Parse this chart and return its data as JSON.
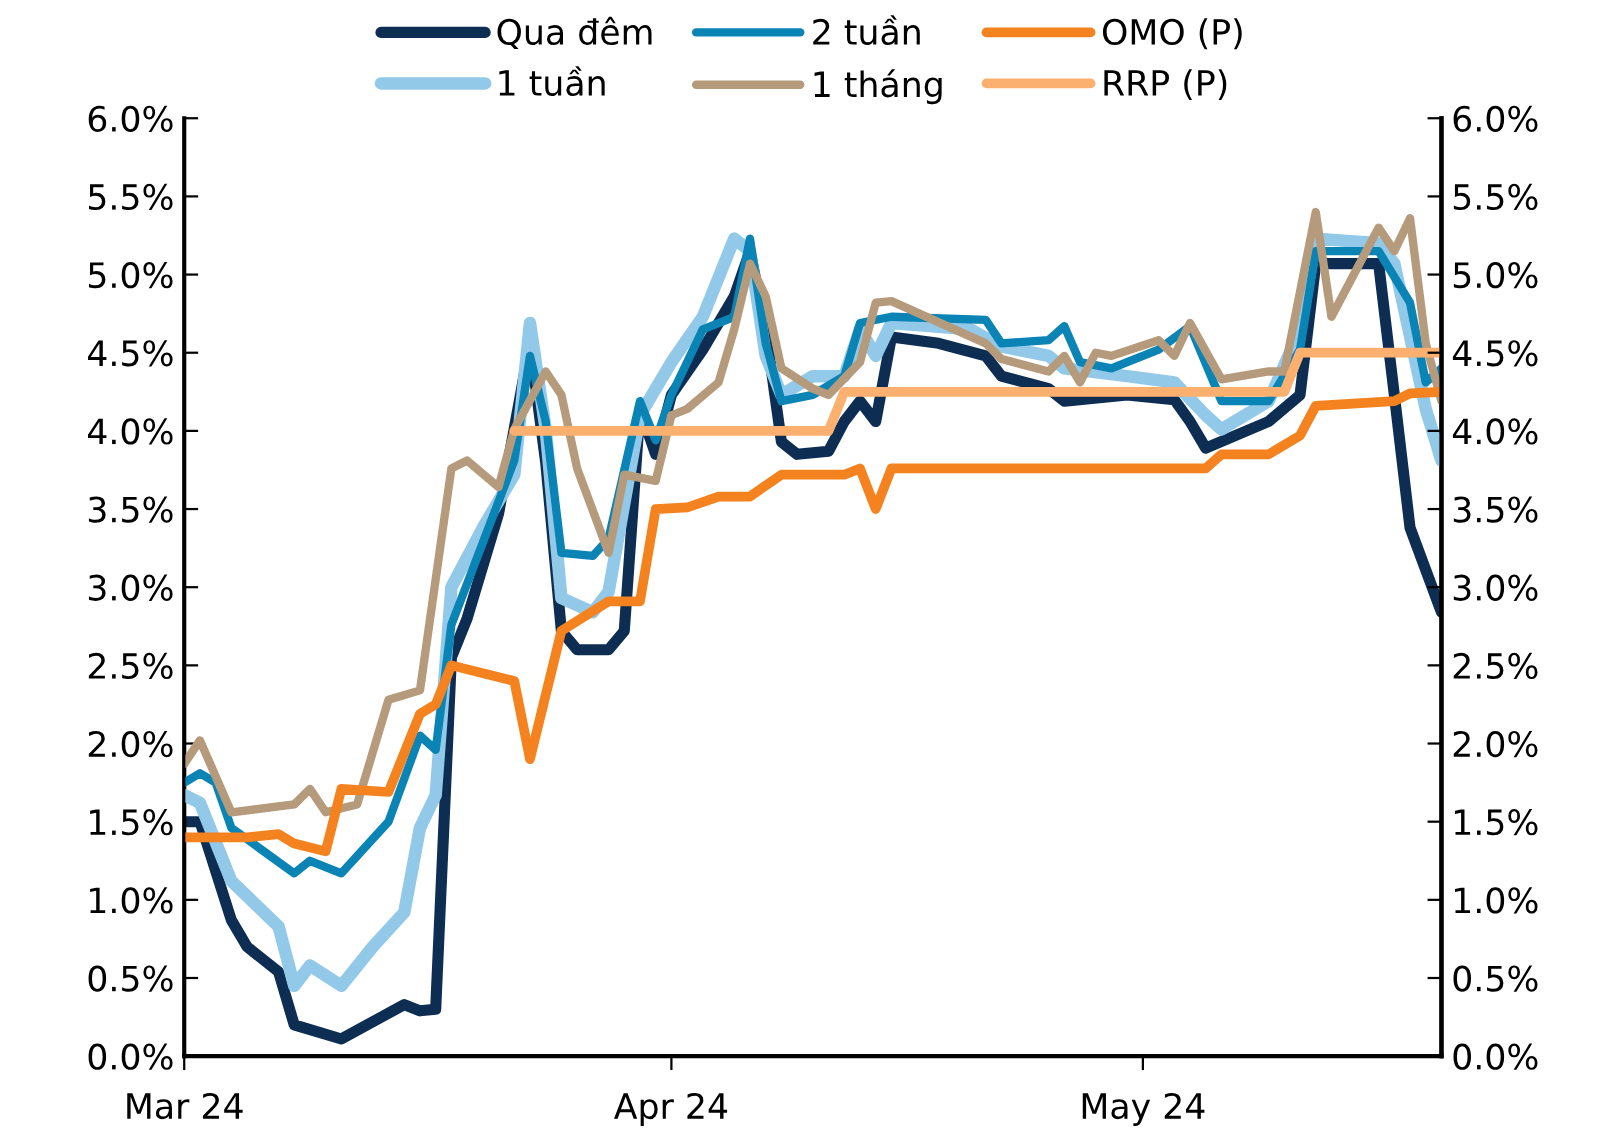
{
  "chart_data": {
    "type": "line",
    "legend": "top",
    "grid": false,
    "line_style": "solid",
    "marker": "none",
    "xlim": [
      "2024-03-01",
      "2024-05-20"
    ],
    "xticks": [
      {
        "value": "2024-03-01",
        "label": "Mar 24"
      },
      {
        "value": "2024-04-01",
        "label": "Apr 24"
      },
      {
        "value": "2024-05-01",
        "label": "May 24"
      }
    ],
    "ylim": [
      0,
      6
    ],
    "yticks": [
      {
        "value": 0,
        "label": "0.0%"
      },
      {
        "value": 0.5,
        "label": "0.5%"
      },
      {
        "value": 1,
        "label": "1.0%"
      },
      {
        "value": 1.5,
        "label": "1.5%"
      },
      {
        "value": 2,
        "label": "2.0%"
      },
      {
        "value": 2.5,
        "label": "2.5%"
      },
      {
        "value": 3,
        "label": "3.0%"
      },
      {
        "value": 3.5,
        "label": "3.5%"
      },
      {
        "value": 4,
        "label": "4.0%"
      },
      {
        "value": 4.5,
        "label": "4.5%"
      },
      {
        "value": 5,
        "label": "5.0%"
      },
      {
        "value": 5.5,
        "label": "5.5%"
      },
      {
        "value": 6,
        "label": "6.0%"
      }
    ],
    "y2lim": [
      0,
      6
    ],
    "y2ticks": [
      {
        "value": 0,
        "label": "0.0%"
      },
      {
        "value": 0.5,
        "label": "0.5%"
      },
      {
        "value": 1,
        "label": "1.0%"
      },
      {
        "value": 1.5,
        "label": "1.5%"
      },
      {
        "value": 2,
        "label": "2.0%"
      },
      {
        "value": 2.5,
        "label": "2.5%"
      },
      {
        "value": 3,
        "label": "3.0%"
      },
      {
        "value": 3.5,
        "label": "3.5%"
      },
      {
        "value": 4,
        "label": "4.0%"
      },
      {
        "value": 4.5,
        "label": "4.5%"
      },
      {
        "value": 5,
        "label": "5.0%"
      },
      {
        "value": 5.5,
        "label": "5.5%"
      },
      {
        "value": 6,
        "label": "6.0%"
      }
    ],
    "series": [
      {
        "name": "Qua đêm",
        "color": "#0d2d52",
        "x": [
          "2024-03-01",
          "2024-03-02",
          "2024-03-04",
          "2024-03-05",
          "2024-03-07",
          "2024-03-08",
          "2024-03-11",
          "2024-03-15",
          "2024-03-16",
          "2024-03-17",
          "2024-03-18",
          "2024-03-19",
          "2024-03-21",
          "2024-03-23",
          "2024-03-24",
          "2024-03-25",
          "2024-03-26",
          "2024-03-28",
          "2024-03-29",
          "2024-03-30",
          "2024-03-31",
          "2024-04-01",
          "2024-04-03",
          "2024-04-05",
          "2024-04-06",
          "2024-04-07",
          "2024-04-08",
          "2024-04-09",
          "2024-04-11",
          "2024-04-12",
          "2024-04-13",
          "2024-04-14",
          "2024-04-15",
          "2024-04-18",
          "2024-04-21",
          "2024-04-22",
          "2024-04-25",
          "2024-04-26",
          "2024-04-30",
          "2024-05-03",
          "2024-05-04",
          "2024-05-05",
          "2024-05-09",
          "2024-05-11",
          "2024-05-12",
          "2024-05-16",
          "2024-05-17",
          "2024-05-18",
          "2024-05-20"
        ],
        "values": [
          1.5,
          1.5,
          0.87,
          0.7,
          0.54,
          0.2,
          0.11,
          0.33,
          0.29,
          0.3,
          2.55,
          2.8,
          3.47,
          4.56,
          3.8,
          2.72,
          2.6,
          2.6,
          2.72,
          4.14,
          3.85,
          4.23,
          4.52,
          4.86,
          5.15,
          4.65,
          3.93,
          3.85,
          3.87,
          4.06,
          4.19,
          4.06,
          4.6,
          4.56,
          4.48,
          4.35,
          4.27,
          4.19,
          4.23,
          4.2,
          4.06,
          3.89,
          4.06,
          4.23,
          5.07,
          5.07,
          4.23,
          3.38,
          2.84
        ]
      },
      {
        "name": "1 tuần",
        "color": "#93c9e8",
        "x": [
          "2024-03-01",
          "2024-03-02",
          "2024-03-04",
          "2024-03-07",
          "2024-03-08",
          "2024-03-09",
          "2024-03-11",
          "2024-03-13",
          "2024-03-15",
          "2024-03-16",
          "2024-03-17",
          "2024-03-18",
          "2024-03-20",
          "2024-03-22",
          "2024-03-23",
          "2024-03-24",
          "2024-03-25",
          "2024-03-27",
          "2024-03-28",
          "2024-03-30",
          "2024-04-01",
          "2024-04-03",
          "2024-04-05",
          "2024-04-06",
          "2024-04-07",
          "2024-04-08",
          "2024-04-10",
          "2024-04-12",
          "2024-04-13",
          "2024-04-14",
          "2024-04-15",
          "2024-04-20",
          "2024-04-22",
          "2024-04-25",
          "2024-04-26",
          "2024-04-30",
          "2024-05-03",
          "2024-05-05",
          "2024-05-06",
          "2024-05-09",
          "2024-05-11",
          "2024-05-12",
          "2024-05-16",
          "2024-05-17",
          "2024-05-19",
          "2024-05-20"
        ],
        "values": [
          1.67,
          1.62,
          1.12,
          0.83,
          0.45,
          0.58,
          0.45,
          0.7,
          0.92,
          1.46,
          1.67,
          3.0,
          3.38,
          3.72,
          4.69,
          4.01,
          2.93,
          2.84,
          2.97,
          4.1,
          4.44,
          4.73,
          5.23,
          5.15,
          4.48,
          4.23,
          4.35,
          4.35,
          4.65,
          4.48,
          4.69,
          4.65,
          4.54,
          4.48,
          4.4,
          4.35,
          4.31,
          4.1,
          4.01,
          4.19,
          4.65,
          5.23,
          5.2,
          5.07,
          4.14,
          3.81
        ]
      },
      {
        "name": "2 tuần",
        "color": "#0a84b5",
        "x": [
          "2024-03-01",
          "2024-03-02",
          "2024-03-03",
          "2024-03-04",
          "2024-03-08",
          "2024-03-09",
          "2024-03-11",
          "2024-03-14",
          "2024-03-16",
          "2024-03-17",
          "2024-03-18",
          "2024-03-22",
          "2024-03-23",
          "2024-03-24",
          "2024-03-25",
          "2024-03-27",
          "2024-03-28",
          "2024-03-30",
          "2024-03-31",
          "2024-04-01",
          "2024-04-03",
          "2024-04-05",
          "2024-04-06",
          "2024-04-07",
          "2024-04-08",
          "2024-04-10",
          "2024-04-12",
          "2024-04-13",
          "2024-04-15",
          "2024-04-21",
          "2024-04-22",
          "2024-04-25",
          "2024-04-26",
          "2024-04-27",
          "2024-04-29",
          "2024-05-02",
          "2024-05-04",
          "2024-05-06",
          "2024-05-09",
          "2024-05-11",
          "2024-05-12",
          "2024-05-16",
          "2024-05-18",
          "2024-05-19",
          "2024-05-20"
        ],
        "values": [
          1.75,
          1.81,
          1.75,
          1.46,
          1.17,
          1.25,
          1.17,
          1.5,
          2.05,
          1.96,
          2.76,
          3.81,
          4.48,
          4.06,
          3.22,
          3.2,
          3.31,
          4.19,
          3.94,
          4.23,
          4.65,
          4.73,
          5.23,
          4.56,
          4.19,
          4.23,
          4.35,
          4.69,
          4.73,
          4.71,
          4.56,
          4.58,
          4.67,
          4.44,
          4.4,
          4.52,
          4.67,
          4.19,
          4.19,
          4.52,
          5.15,
          5.15,
          4.82,
          4.31,
          4.4
        ]
      },
      {
        "name": "1 tháng",
        "color": "#b59a7b",
        "x": [
          "2024-03-01",
          "2024-03-02",
          "2024-03-04",
          "2024-03-08",
          "2024-03-09",
          "2024-03-10",
          "2024-03-12",
          "2024-03-14",
          "2024-03-16",
          "2024-03-18",
          "2024-03-19",
          "2024-03-21",
          "2024-03-22",
          "2024-03-24",
          "2024-03-25",
          "2024-03-26",
          "2024-03-28",
          "2024-03-29",
          "2024-03-31",
          "2024-04-01",
          "2024-04-02",
          "2024-04-04",
          "2024-04-05",
          "2024-04-06",
          "2024-04-07",
          "2024-04-08",
          "2024-04-10",
          "2024-04-11",
          "2024-04-13",
          "2024-04-14",
          "2024-04-15",
          "2024-04-21",
          "2024-04-22",
          "2024-04-25",
          "2024-04-26",
          "2024-04-27",
          "2024-04-28",
          "2024-04-29",
          "2024-05-02",
          "2024-05-03",
          "2024-05-04",
          "2024-05-06",
          "2024-05-09",
          "2024-05-10",
          "2024-05-12",
          "2024-05-13",
          "2024-05-16",
          "2024-05-17",
          "2024-05-18",
          "2024-05-19",
          "2024-05-20"
        ],
        "values": [
          1.87,
          2.02,
          1.56,
          1.61,
          1.71,
          1.56,
          1.61,
          2.28,
          2.34,
          3.76,
          3.81,
          3.64,
          4.01,
          4.38,
          4.23,
          3.76,
          3.22,
          3.72,
          3.68,
          4.1,
          4.14,
          4.31,
          4.65,
          5.07,
          4.86,
          4.4,
          4.27,
          4.23,
          4.44,
          4.82,
          4.83,
          4.56,
          4.46,
          4.38,
          4.48,
          4.31,
          4.5,
          4.48,
          4.58,
          4.48,
          4.69,
          4.33,
          4.38,
          4.38,
          5.4,
          4.73,
          5.3,
          5.15,
          5.36,
          4.56,
          4.19
        ]
      },
      {
        "name": "OMO (P)",
        "color": "#f4821f",
        "x": [
          "2024-03-01",
          "2024-03-05",
          "2024-03-07",
          "2024-03-08",
          "2024-03-10",
          "2024-03-11",
          "2024-03-14",
          "2024-03-16",
          "2024-03-17",
          "2024-03-18",
          "2024-03-22",
          "2024-03-23",
          "2024-03-25",
          "2024-03-28",
          "2024-03-30",
          "2024-03-31",
          "2024-04-02",
          "2024-04-04",
          "2024-04-06",
          "2024-04-08",
          "2024-04-12",
          "2024-04-13",
          "2024-04-14",
          "2024-04-15",
          "2024-05-05",
          "2024-05-06",
          "2024-05-09",
          "2024-05-11",
          "2024-05-12",
          "2024-05-17",
          "2024-05-18",
          "2024-05-20"
        ],
        "values": [
          1.4,
          1.4,
          1.42,
          1.36,
          1.31,
          1.71,
          1.69,
          2.19,
          2.25,
          2.5,
          2.4,
          1.9,
          2.72,
          2.91,
          2.91,
          3.5,
          3.51,
          3.58,
          3.58,
          3.72,
          3.72,
          3.76,
          3.5,
          3.76,
          3.76,
          3.85,
          3.85,
          3.97,
          4.16,
          4.19,
          4.24,
          4.25
        ]
      },
      {
        "name": "RRP (P)",
        "color": "#fbb06f",
        "x": [
          "2024-03-22",
          "2024-04-11",
          "2024-04-12",
          "2024-05-10",
          "2024-05-11",
          "2024-05-20"
        ],
        "values": [
          4.0,
          4.0,
          4.25,
          4.25,
          4.5,
          4.5
        ]
      }
    ]
  }
}
